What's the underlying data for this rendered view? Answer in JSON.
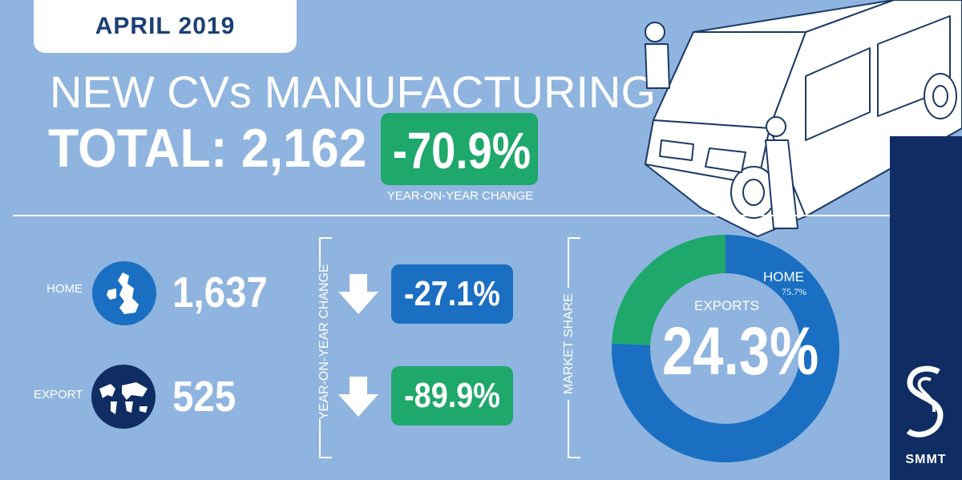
{
  "header": {
    "date": "APRIL 2019",
    "title": "NEW CVs MANUFACTURING",
    "total": "TOTAL: 2,162",
    "yoy_change": "-70.9%",
    "yoy_label": "YEAR-ON-YEAR CHANGE"
  },
  "rows": [
    {
      "label": "HOME",
      "value": "1,637",
      "change": "-27.1%"
    },
    {
      "label": "EXPORT",
      "value": "525",
      "change": "-89.9%"
    }
  ],
  "change_axis_label": "YEAR-ON-YEAR CHANGE",
  "share_axis_label": "MARKET SHARE",
  "donut": {
    "home_label": "HOME",
    "home_pct": "75.7%",
    "exports_label": "EXPORTS",
    "exports_pct": "24.3%"
  },
  "logo": "SMMT",
  "colors": {
    "background": "#8fb4df",
    "home_blue": "#1a6fc2",
    "export_green": "#1ea86b",
    "navy": "#0f2d63"
  },
  "chart_data": {
    "type": "pie",
    "donut": true,
    "categories": [
      "HOME",
      "EXPORTS"
    ],
    "values": [
      75.7,
      24.3
    ],
    "colors": [
      "#1a6fc2",
      "#1ea86b"
    ]
  }
}
